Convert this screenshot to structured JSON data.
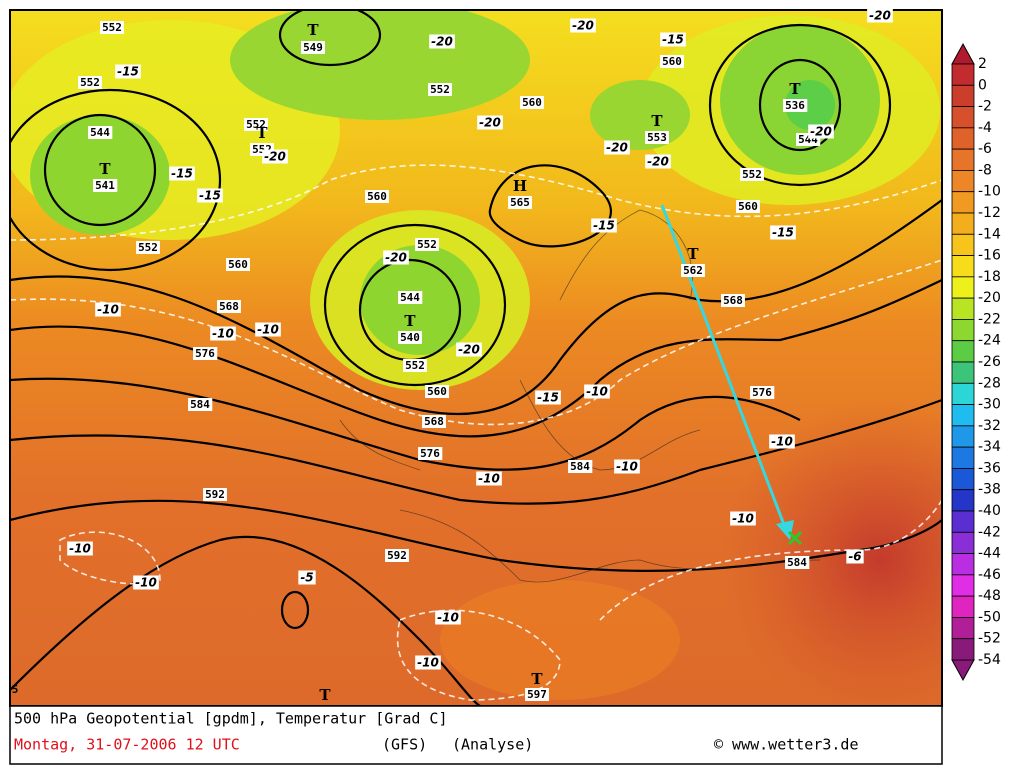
{
  "map": {
    "contour_labels": [
      "552",
      "549",
      "552",
      "544",
      "541",
      "552",
      "552",
      "552",
      "560",
      "560",
      "553",
      "536",
      "544",
      "552",
      "560",
      "565",
      "560",
      "552",
      "552",
      "560",
      "562",
      "544",
      "540",
      "552",
      "568",
      "576",
      "560",
      "568",
      "584",
      "568",
      "576",
      "576",
      "584",
      "592",
      "592",
      "584",
      "597"
    ],
    "pressure_centers": [
      "T",
      "T",
      "T",
      "T",
      "T",
      "H",
      "T",
      "T",
      "T",
      "T"
    ],
    "temperature_labels": [
      "-15",
      "-20",
      "-20",
      "-15",
      "-20",
      "-20",
      "-15",
      "-15",
      "-20",
      "-20",
      "-20",
      "-20",
      "-20",
      "-15",
      "-15",
      "-10",
      "-10",
      "-10",
      "-20",
      "-15",
      "-10",
      "-10",
      "-10",
      "-10",
      "-10",
      "-6",
      "-10",
      "-10",
      "-5",
      "-10",
      "-10"
    ],
    "corner_label": "5"
  },
  "legend": {
    "values": [
      2,
      0,
      -2,
      -4,
      -6,
      -8,
      -10,
      -12,
      -14,
      -16,
      -18,
      -20,
      -22,
      -24,
      -26,
      -28,
      -30,
      -32,
      -34,
      -36,
      -38,
      -40,
      -42,
      -44,
      -46,
      -48,
      -50,
      -52,
      -54
    ],
    "colors": [
      "#b01a2e",
      "#c22c2e",
      "#cc3e2c",
      "#d6502c",
      "#de622a",
      "#e6742a",
      "#ec8626",
      "#f09a22",
      "#f3ae1e",
      "#f6c41a",
      "#f6dc1a",
      "#eef01c",
      "#b8e424",
      "#8cd830",
      "#5ccc44",
      "#3cc478",
      "#2cd6d6",
      "#20bcf0",
      "#2098ea",
      "#1e78e2",
      "#1a58d8",
      "#2436c8",
      "#5a2ed0",
      "#8a2ed8",
      "#b82ee0",
      "#e02ee6",
      "#e024c0",
      "#b01e98",
      "#8a1a7a"
    ]
  },
  "footer": {
    "title": "500 hPa Geopotential [gpdm], Temperatur [Grad C]",
    "date": "Montag, 31-07-2006   12 UTC",
    "model": "(GFS)",
    "run": "(Analyse)",
    "credit": "© www.wetter3.de"
  }
}
